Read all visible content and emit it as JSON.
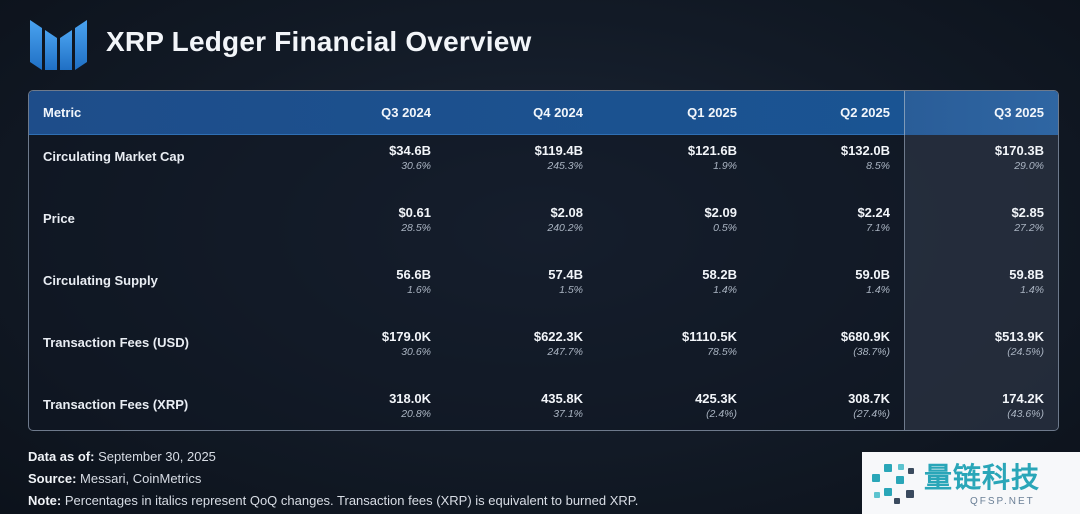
{
  "title": "XRP Ledger Financial Overview",
  "header": {
    "metric_label": "Metric",
    "quarters": [
      "Q3 2024",
      "Q4 2024",
      "Q1 2025",
      "Q2 2025",
      "Q3 2025"
    ]
  },
  "rows": [
    {
      "metric": "Circulating Market Cap",
      "cells": [
        {
          "value": "$34.6B",
          "change": "30.6%"
        },
        {
          "value": "$119.4B",
          "change": "245.3%"
        },
        {
          "value": "$121.6B",
          "change": "1.9%"
        },
        {
          "value": "$132.0B",
          "change": "8.5%"
        },
        {
          "value": "$170.3B",
          "change": "29.0%"
        }
      ]
    },
    {
      "metric": "Price",
      "cells": [
        {
          "value": "$0.61",
          "change": "28.5%"
        },
        {
          "value": "$2.08",
          "change": "240.2%"
        },
        {
          "value": "$2.09",
          "change": "0.5%"
        },
        {
          "value": "$2.24",
          "change": "7.1%"
        },
        {
          "value": "$2.85",
          "change": "27.2%"
        }
      ]
    },
    {
      "metric": "Circulating Supply",
      "cells": [
        {
          "value": "56.6B",
          "change": "1.6%"
        },
        {
          "value": "57.4B",
          "change": "1.5%"
        },
        {
          "value": "58.2B",
          "change": "1.4%"
        },
        {
          "value": "59.0B",
          "change": "1.4%"
        },
        {
          "value": "59.8B",
          "change": "1.4%"
        }
      ]
    },
    {
      "metric": "Transaction Fees (USD)",
      "cells": [
        {
          "value": "$179.0K",
          "change": "30.6%"
        },
        {
          "value": "$622.3K",
          "change": "247.7%"
        },
        {
          "value": "$1110.5K",
          "change": "78.5%"
        },
        {
          "value": "$680.9K",
          "change": "(38.7%)"
        },
        {
          "value": "$513.9K",
          "change": "(24.5%)"
        }
      ]
    },
    {
      "metric": "Transaction Fees (XRP)",
      "cells": [
        {
          "value": "318.0K",
          "change": "20.8%"
        },
        {
          "value": "435.8K",
          "change": "37.1%"
        },
        {
          "value": "425.3K",
          "change": "(2.4%)"
        },
        {
          "value": "308.7K",
          "change": "(27.4%)"
        },
        {
          "value": "174.2K",
          "change": "(43.6%)"
        }
      ]
    }
  ],
  "footer": {
    "data_as_of_label": "Data as of:",
    "data_as_of_value": "September 30, 2025",
    "source_label": "Source:",
    "source_value": "Messari, CoinMetrics",
    "note_label": "Note:",
    "note_value": "Percentages in italics represent QoQ changes. Transaction fees (XRP) is equivalent to burned XRP."
  },
  "watermark": {
    "text": "量链科技",
    "sub": "QFSP.NET"
  },
  "colors": {
    "background": "#121a26",
    "header_blue": "#1b5290",
    "highlight_column": "#343e4e",
    "watermark_teal": "#2aa6b8"
  }
}
